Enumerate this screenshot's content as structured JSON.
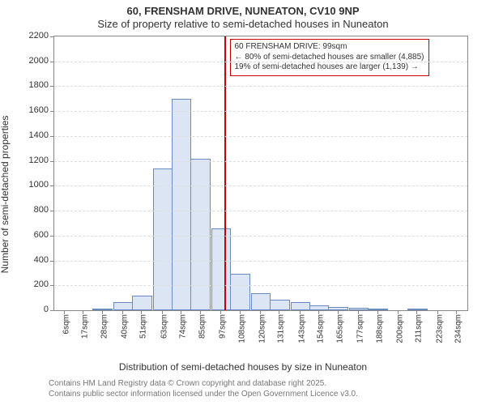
{
  "title_line1": "60, FRENSHAM DRIVE, NUNEATON, CV10 9NP",
  "title_line2": "Size of property relative to semi-detached houses in Nuneaton",
  "y_axis_label": "Number of semi-detached properties",
  "x_axis_label": "Distribution of semi-detached houses by size in Nuneaton",
  "footer_line1": "Contains HM Land Registry data © Crown copyright and database right 2025.",
  "footer_line2": "Contains public sector information licensed under the Open Government Licence v3.0.",
  "chart": {
    "type": "histogram",
    "background_color": "#ffffff",
    "plot_border_color": "#888888",
    "grid_color": "#dddddd",
    "bar_fill_color": "#dbe5f4",
    "bar_border_color": "#6a8bbf",
    "marker_line_color": "#cc0000",
    "annotation_border_color": "#cc0000",
    "font_family": "Arial",
    "title_fontsize": 13,
    "label_fontsize": 12,
    "tick_fontsize": 11,
    "xtick_fontsize": 10,
    "ylim": [
      0,
      2200
    ],
    "ytick_step": 200,
    "xlim": [
      0,
      240
    ],
    "bar_width_units": 11.5,
    "categories": [
      "6sqm",
      "17sqm",
      "28sqm",
      "40sqm",
      "51sqm",
      "63sqm",
      "74sqm",
      "85sqm",
      "97sqm",
      "108sqm",
      "120sqm",
      "131sqm",
      "143sqm",
      "154sqm",
      "165sqm",
      "177sqm",
      "188sqm",
      "200sqm",
      "211sqm",
      "223sqm",
      "234sqm"
    ],
    "category_centers": [
      6,
      17,
      28,
      40,
      51,
      63,
      74,
      85,
      97,
      108,
      120,
      131,
      143,
      154,
      165,
      177,
      188,
      200,
      211,
      223,
      234
    ],
    "values": [
      0,
      0,
      10,
      65,
      120,
      1140,
      1700,
      1220,
      660,
      290,
      135,
      85,
      65,
      40,
      25,
      20,
      12,
      0,
      10,
      0,
      0
    ],
    "marker_x": 99,
    "annotation": {
      "line1": "60 FRENSHAM DRIVE: 99sqm",
      "line2": "← 80% of semi-detached houses are smaller (4,885)",
      "line3": "19% of semi-detached houses are larger (1,139) →",
      "x": 100,
      "y_top": 2180
    }
  }
}
